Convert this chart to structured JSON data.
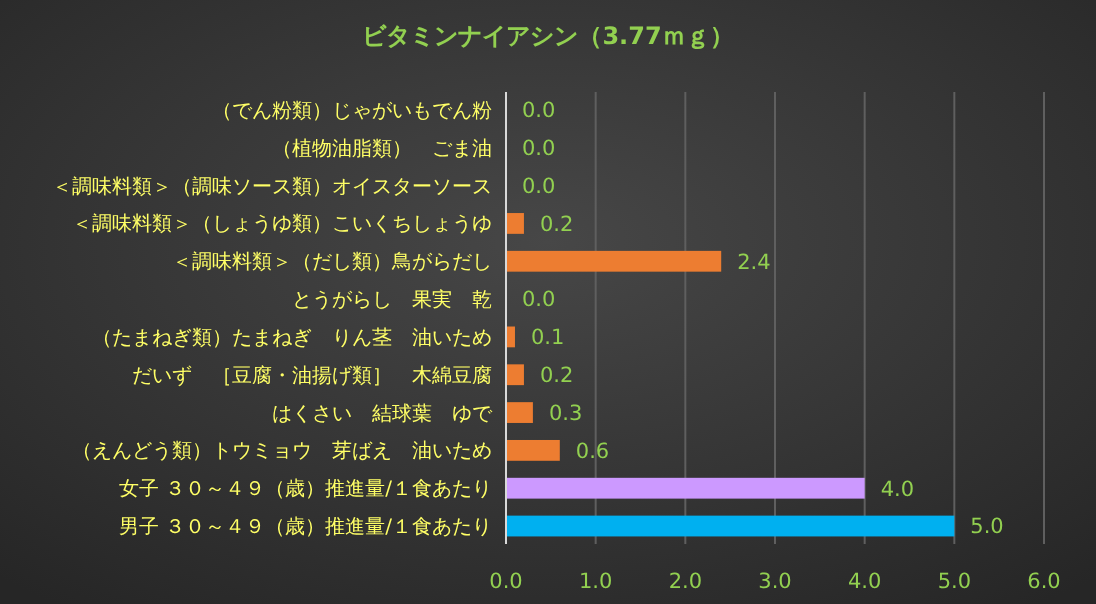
{
  "chart_data": {
    "type": "bar",
    "orientation": "horizontal",
    "title": "ビタミンナイアシン（3.77ｍｇ）",
    "categories": [
      "（でん粉類）じゃがいもでん粉",
      "（植物油脂類）　ごま油",
      "＜調味料類＞（調味ソース類）オイスターソース",
      "＜調味料類＞（しょうゆ類）こいくちしょうゆ",
      "＜調味料類＞（だし類）鳥がらだし",
      "とうがらし　果実　乾",
      "（たまねぎ類）たまねぎ　りん茎　油いため",
      "だいず　［豆腐・油揚げ類］　木綿豆腐",
      "はくさい　結球葉　ゆで",
      "（えんどう類）トウミョウ　芽ばえ　油いため",
      "女子 ３０～４９（歳）推進量/１食あたり",
      "男子 ３０～４９（歳）推進量/１食あたり"
    ],
    "values": [
      0,
      0,
      0,
      0.2,
      2.4,
      0,
      0.1,
      0.2,
      0.3,
      0.6,
      4.0,
      5.0
    ],
    "value_labels": [
      "0.0",
      "0.0",
      "0.0",
      "0.2",
      "2.4",
      "0.0",
      "0.1",
      "0.2",
      "0.3",
      "0.6",
      "4.0",
      "5.0"
    ],
    "colors": [
      "#ed7d31",
      "#ed7d31",
      "#ed7d31",
      "#ed7d31",
      "#ed7d31",
      "#ed7d31",
      "#ed7d31",
      "#ed7d31",
      "#ed7d31",
      "#ed7d31",
      "#cc99ff",
      "#00b0f0"
    ],
    "xlim": [
      0,
      6
    ],
    "xticks": [
      {
        "value": 0,
        "label": "0.0"
      },
      {
        "value": 1,
        "label": "1.0"
      },
      {
        "value": 2,
        "label": "2.0"
      },
      {
        "value": 3,
        "label": "3.0"
      },
      {
        "value": 4,
        "label": "4.0"
      },
      {
        "value": 5,
        "label": "5.0"
      },
      {
        "value": 6,
        "label": "6.0"
      }
    ],
    "grid": "x"
  }
}
